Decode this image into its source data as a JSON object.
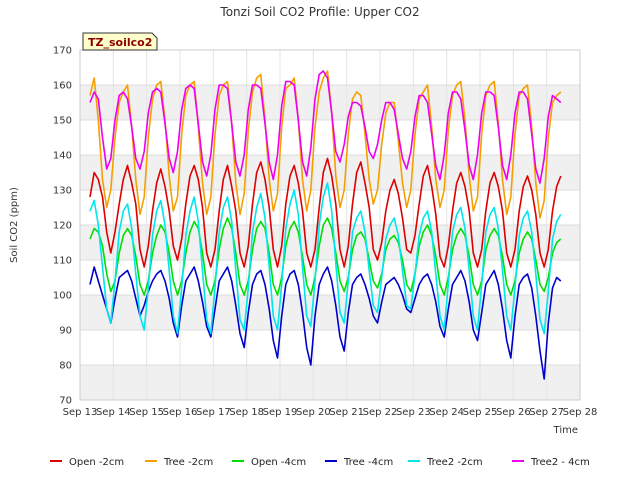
{
  "chart_data": {
    "type": "line",
    "title": "Tonzi Soil CO2 Profile: Upper CO2",
    "xlabel": "Time",
    "ylabel": "Soil CO2 (ppm)",
    "badge": "TZ_soilco2",
    "ylim": [
      70,
      170
    ],
    "yticks": [
      70,
      80,
      90,
      100,
      110,
      120,
      130,
      140,
      150,
      160,
      170
    ],
    "xlim": [
      13,
      28
    ],
    "xticks": [
      13,
      14,
      15,
      16,
      17,
      18,
      19,
      20,
      21,
      22,
      23,
      24,
      25,
      26,
      27,
      28
    ],
    "xtick_labels": [
      "Sep 13",
      "Sep 14",
      "Sep 15",
      "Sep 16",
      "Sep 17",
      "Sep 18",
      "Sep 19",
      "Sep 20",
      "Sep 21",
      "Sep 22",
      "Sep 23",
      "Sep 24",
      "Sep 25",
      "Sep 26",
      "Sep 27",
      "Sep 28"
    ],
    "day_start": 13.3,
    "points_per_day": 8,
    "grid": true,
    "legend_position": "bottom",
    "series": [
      {
        "name": "Open -2cm",
        "color": "#dd0000",
        "values": [
          128,
          135,
          133,
          128,
          118,
          112,
          118,
          126,
          133,
          137,
          132,
          126,
          113,
          108,
          114,
          124,
          132,
          136,
          131,
          124,
          114,
          110,
          116,
          126,
          134,
          137,
          133,
          125,
          112,
          108,
          113,
          124,
          133,
          137,
          131,
          124,
          112,
          108,
          114,
          126,
          135,
          138,
          133,
          125,
          113,
          108,
          114,
          126,
          134,
          137,
          132,
          124,
          112,
          108,
          113,
          125,
          135,
          139,
          134,
          126,
          113,
          108,
          114,
          126,
          135,
          138,
          132,
          125,
          113,
          110,
          115,
          124,
          130,
          133,
          129,
          122,
          113,
          112,
          117,
          126,
          134,
          137,
          131,
          123,
          111,
          108,
          114,
          124,
          132,
          135,
          131,
          124,
          112,
          108,
          113,
          124,
          132,
          135,
          131,
          124,
          112,
          108,
          113,
          124,
          131,
          134,
          130,
          123,
          112,
          108,
          113,
          124,
          131,
          134
        ]
      },
      {
        "name": "Tree -2cm",
        "color": "#f5a000",
        "values": [
          157,
          162,
          150,
          133,
          125,
          130,
          145,
          155,
          158,
          160,
          148,
          133,
          123,
          128,
          145,
          156,
          160,
          161,
          150,
          134,
          124,
          128,
          146,
          157,
          160,
          161,
          148,
          132,
          123,
          128,
          146,
          157,
          160,
          161,
          149,
          132,
          123,
          129,
          147,
          158,
          162,
          163,
          150,
          133,
          124,
          129,
          148,
          159,
          160,
          162,
          150,
          133,
          124,
          130,
          148,
          158,
          162,
          164,
          152,
          134,
          125,
          130,
          146,
          156,
          158,
          157,
          146,
          133,
          126,
          130,
          143,
          152,
          155,
          155,
          144,
          132,
          125,
          130,
          146,
          156,
          158,
          160,
          148,
          133,
          125,
          130,
          147,
          157,
          160,
          161,
          150,
          134,
          124,
          128,
          146,
          157,
          160,
          161,
          149,
          133,
          123,
          128,
          146,
          157,
          159,
          160,
          148,
          132,
          122,
          127,
          145,
          155,
          157,
          158
        ]
      },
      {
        "name": "Open -4cm",
        "color": "#00dd00",
        "values": [
          116,
          119,
          118,
          114,
          106,
          101,
          104,
          112,
          117,
          119,
          117,
          111,
          103,
          100,
          104,
          112,
          117,
          120,
          118,
          112,
          104,
          100,
          104,
          112,
          118,
          121,
          119,
          112,
          103,
          100,
          104,
          113,
          119,
          122,
          119,
          112,
          103,
          100,
          104,
          113,
          119,
          121,
          119,
          112,
          103,
          100,
          105,
          114,
          119,
          121,
          118,
          111,
          103,
          100,
          105,
          114,
          120,
          122,
          119,
          112,
          104,
          101,
          105,
          113,
          117,
          118,
          116,
          110,
          104,
          102,
          106,
          113,
          116,
          117,
          115,
          110,
          103,
          101,
          106,
          114,
          118,
          120,
          117,
          111,
          103,
          100,
          105,
          113,
          117,
          119,
          117,
          111,
          103,
          100,
          104,
          113,
          117,
          119,
          117,
          111,
          103,
          100,
          104,
          112,
          116,
          118,
          116,
          110,
          103,
          101,
          105,
          112,
          115,
          116
        ]
      },
      {
        "name": "Tree -4cm",
        "color": "#0000cc",
        "values": [
          103,
          108,
          104,
          100,
          96,
          92,
          99,
          105,
          106,
          107,
          104,
          99,
          94,
          97,
          101,
          104,
          106,
          107,
          104,
          99,
          92,
          88,
          97,
          104,
          106,
          108,
          104,
          98,
          91,
          88,
          96,
          104,
          106,
          108,
          104,
          97,
          89,
          85,
          95,
          103,
          106,
          107,
          103,
          96,
          87,
          82,
          94,
          103,
          106,
          107,
          103,
          95,
          85,
          80,
          94,
          103,
          106,
          108,
          104,
          97,
          88,
          84,
          95,
          103,
          105,
          106,
          103,
          99,
          94,
          92,
          98,
          103,
          104,
          105,
          103,
          100,
          96,
          95,
          99,
          103,
          105,
          106,
          103,
          98,
          91,
          88,
          96,
          103,
          105,
          107,
          104,
          98,
          90,
          87,
          95,
          103,
          105,
          107,
          103,
          96,
          87,
          82,
          94,
          103,
          105,
          106,
          102,
          94,
          84,
          76,
          92,
          102,
          105,
          104
        ]
      },
      {
        "name": "Tree2 -2cm",
        "color": "#00e5ee",
        "values": [
          124,
          127,
          120,
          108,
          96,
          92,
          104,
          118,
          124,
          126,
          119,
          106,
          94,
          90,
          102,
          117,
          124,
          127,
          120,
          107,
          94,
          89,
          102,
          117,
          124,
          128,
          121,
          107,
          93,
          89,
          102,
          118,
          125,
          128,
          121,
          107,
          93,
          90,
          102,
          118,
          125,
          129,
          122,
          108,
          94,
          90,
          103,
          119,
          126,
          130,
          123,
          108,
          94,
          91,
          104,
          120,
          128,
          132,
          124,
          109,
          95,
          92,
          104,
          118,
          122,
          124,
          118,
          107,
          97,
          95,
          105,
          116,
          120,
          122,
          117,
          107,
          97,
          96,
          106,
          117,
          122,
          124,
          118,
          106,
          94,
          90,
          103,
          118,
          123,
          125,
          119,
          107,
          94,
          90,
          103,
          118,
          123,
          125,
          119,
          107,
          94,
          90,
          102,
          117,
          122,
          124,
          118,
          106,
          93,
          89,
          101,
          116,
          121,
          123
        ]
      },
      {
        "name": "Tree2 - 4cm",
        "color": "#ee00ee",
        "values": [
          155,
          158,
          156,
          145,
          136,
          139,
          150,
          157,
          158,
          156,
          148,
          139,
          136,
          141,
          152,
          158,
          159,
          158,
          149,
          139,
          135,
          141,
          153,
          159,
          160,
          159,
          149,
          138,
          134,
          140,
          153,
          160,
          160,
          159,
          149,
          138,
          134,
          140,
          153,
          160,
          160,
          159,
          149,
          138,
          133,
          140,
          154,
          161,
          161,
          160,
          150,
          138,
          134,
          142,
          156,
          163,
          164,
          162,
          152,
          141,
          138,
          143,
          151,
          155,
          155,
          154,
          148,
          141,
          139,
          143,
          150,
          155,
          155,
          153,
          146,
          139,
          136,
          141,
          151,
          157,
          157,
          155,
          146,
          137,
          133,
          140,
          152,
          158,
          158,
          156,
          147,
          137,
          133,
          140,
          152,
          158,
          158,
          157,
          148,
          137,
          133,
          140,
          152,
          158,
          158,
          156,
          146,
          136,
          132,
          139,
          151,
          157,
          156,
          155
        ]
      }
    ]
  }
}
